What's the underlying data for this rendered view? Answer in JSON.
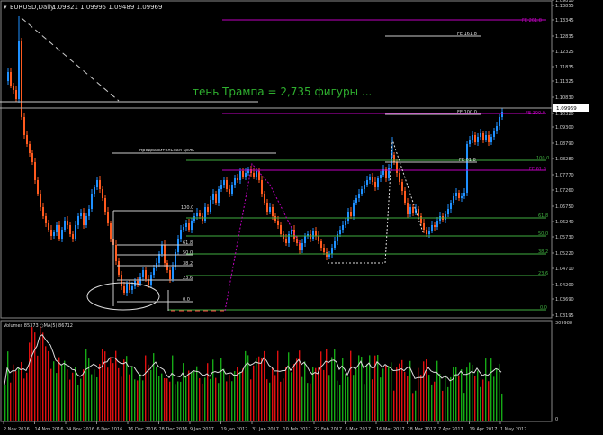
{
  "header": {
    "symbol": "EURUSD,Daily",
    "ohlc": "1.09821 1.09995 1.09489 1.09969"
  },
  "annotation": "тень Трампа = 2,735 фигуры ...",
  "prelim_target_label": "предварительная цель",
  "price_axis": {
    "labels": [
      "1.13855",
      "1.13345",
      "1.12835",
      "1.12325",
      "1.11835",
      "1.11325",
      "1.10830",
      "1.10320",
      "1.09969",
      "1.09810",
      "1.09300",
      "1.08790",
      "1.08280",
      "1.07770",
      "1.07260",
      "1.06750",
      "1.06240",
      "1.05730",
      "1.05220",
      "1.04710",
      "1.04200",
      "1.03690",
      "1.03195"
    ],
    "current": "1.09969"
  },
  "volume_panel": {
    "label": "Volumes 85373  ○MA(5) 86712",
    "axis_labels": [
      "309988",
      "0"
    ]
  },
  "date_axis": [
    "2 Nov 2016",
    "14 Nov 2016",
    "24 Nov 2016",
    "6 Dec 2016",
    "16 Dec 2016",
    "28 Dec 2016",
    "9 Jan 2017",
    "19 Jan 2017",
    "31 Jan 2017",
    "10 Feb 2017",
    "22 Feb 2017",
    "6 Mar 2017",
    "16 Mar 2017",
    "28 Mar 2017",
    "7 Apr 2017",
    "19 Apr 2017",
    "1 May 2017"
  ],
  "fib_left": {
    "levels": [
      "100.0",
      "61.8",
      "50.0",
      "38.2",
      "23.6",
      "0.0"
    ]
  },
  "fib_right": {
    "levels": [
      "100.0",
      "61.8",
      "50.0",
      "38.2",
      "23.6",
      "0.0"
    ]
  },
  "fe_labels": {
    "fe261": "FE 261.8",
    "fe161": "FE 161.8",
    "fe100_white": "FE 100.0",
    "fe100_magenta": "FE 100.0",
    "fe61_white": "FE 61.8",
    "fe61_magenta": "FE 61.8"
  },
  "colors": {
    "bull": "#1e90ff",
    "bear": "#ff5a1e",
    "fib_green": "#3fae3f",
    "fe_magenta": "#c000c0",
    "annotation_green": "#2fb12f",
    "vol_up": "#16a916",
    "vol_down": "#e01010"
  }
}
